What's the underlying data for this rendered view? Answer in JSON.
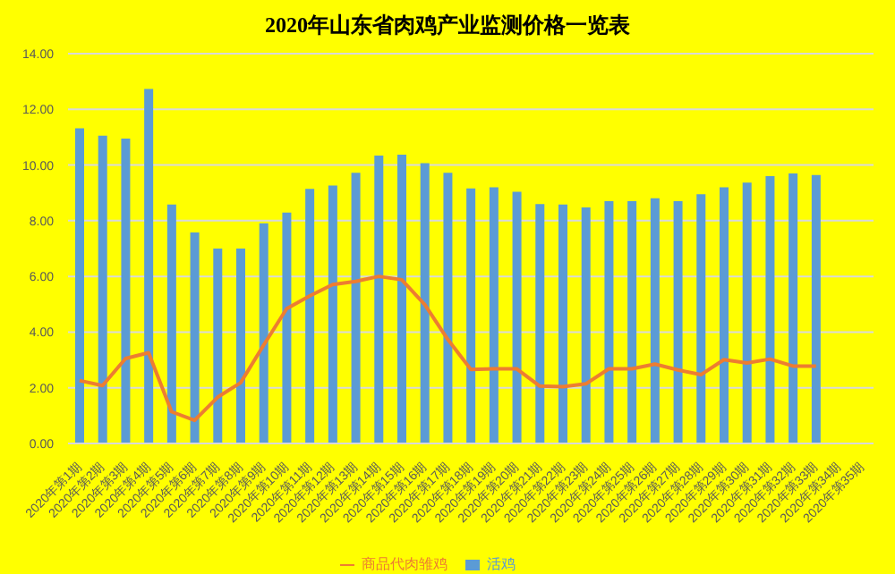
{
  "chart_data": {
    "type": "bar",
    "title": "2020年山东省肉鸡产业监测价格一览表",
    "categories": [
      "2020年第1期",
      "2020年第2期",
      "2020年第3期",
      "2020年第4期",
      "2020年第5期",
      "2020年第6期",
      "2020年第7期",
      "2020年第8期",
      "2020年第9期",
      "2020年第10期",
      "2020年第11期",
      "2020年第12期",
      "2020年第13期",
      "2020年第14期",
      "2020年第15期",
      "2020年第16期",
      "2020年第17期",
      "2020年第18期",
      "2020年第19期",
      "2020年第20期",
      "2020年第21期",
      "2020年第22期",
      "2020年第23期",
      "2020年第24期",
      "2020年第25期",
      "2020年第26期",
      "2020年第27期",
      "2020年第28期",
      "2020年第29期",
      "2020年第30期",
      "2020年第31期",
      "2020年第32期",
      "2020年第33期",
      "2020年第34期",
      "2020年第35期"
    ],
    "series": [
      {
        "name": "活鸡",
        "color": "#5b9bd5",
        "values": [
          11.32,
          11.05,
          10.95,
          12.73,
          8.58,
          7.58,
          7.0,
          7.0,
          7.91,
          8.29,
          9.14,
          9.26,
          9.72,
          10.34,
          10.37,
          10.07,
          9.72,
          9.16,
          9.2,
          9.04,
          8.6,
          8.58,
          8.48,
          8.7,
          8.7,
          8.81,
          8.7,
          8.95,
          9.2,
          9.37,
          9.6,
          9.7,
          9.64,
          null,
          null
        ]
      },
      {
        "name": "商品代肉雏鸡",
        "type": "line",
        "color": "#ed7d31",
        "values": [
          2.26,
          2.08,
          3.05,
          3.26,
          1.14,
          0.83,
          1.66,
          2.18,
          3.53,
          4.84,
          5.3,
          5.71,
          5.82,
          6.0,
          5.88,
          4.99,
          3.74,
          2.66,
          2.68,
          2.68,
          2.06,
          2.04,
          2.14,
          2.68,
          2.68,
          2.85,
          2.64,
          2.47,
          3.01,
          2.89,
          3.03,
          2.78,
          2.78,
          null,
          null
        ]
      }
    ],
    "ylim": [
      0,
      14
    ],
    "yticks": [
      {
        "value": 0,
        "label": "0.00"
      },
      {
        "value": 2,
        "label": "2.00"
      },
      {
        "value": 4,
        "label": "4.00"
      },
      {
        "value": 6,
        "label": "6.00"
      },
      {
        "value": 8,
        "label": "8.00"
      },
      {
        "value": 10,
        "label": "10.00"
      },
      {
        "value": 12,
        "label": "12.00"
      },
      {
        "value": 14,
        "label": "14.00"
      }
    ],
    "grid": "y",
    "legend": "bottom",
    "marker": "none",
    "line_style": "solid"
  }
}
